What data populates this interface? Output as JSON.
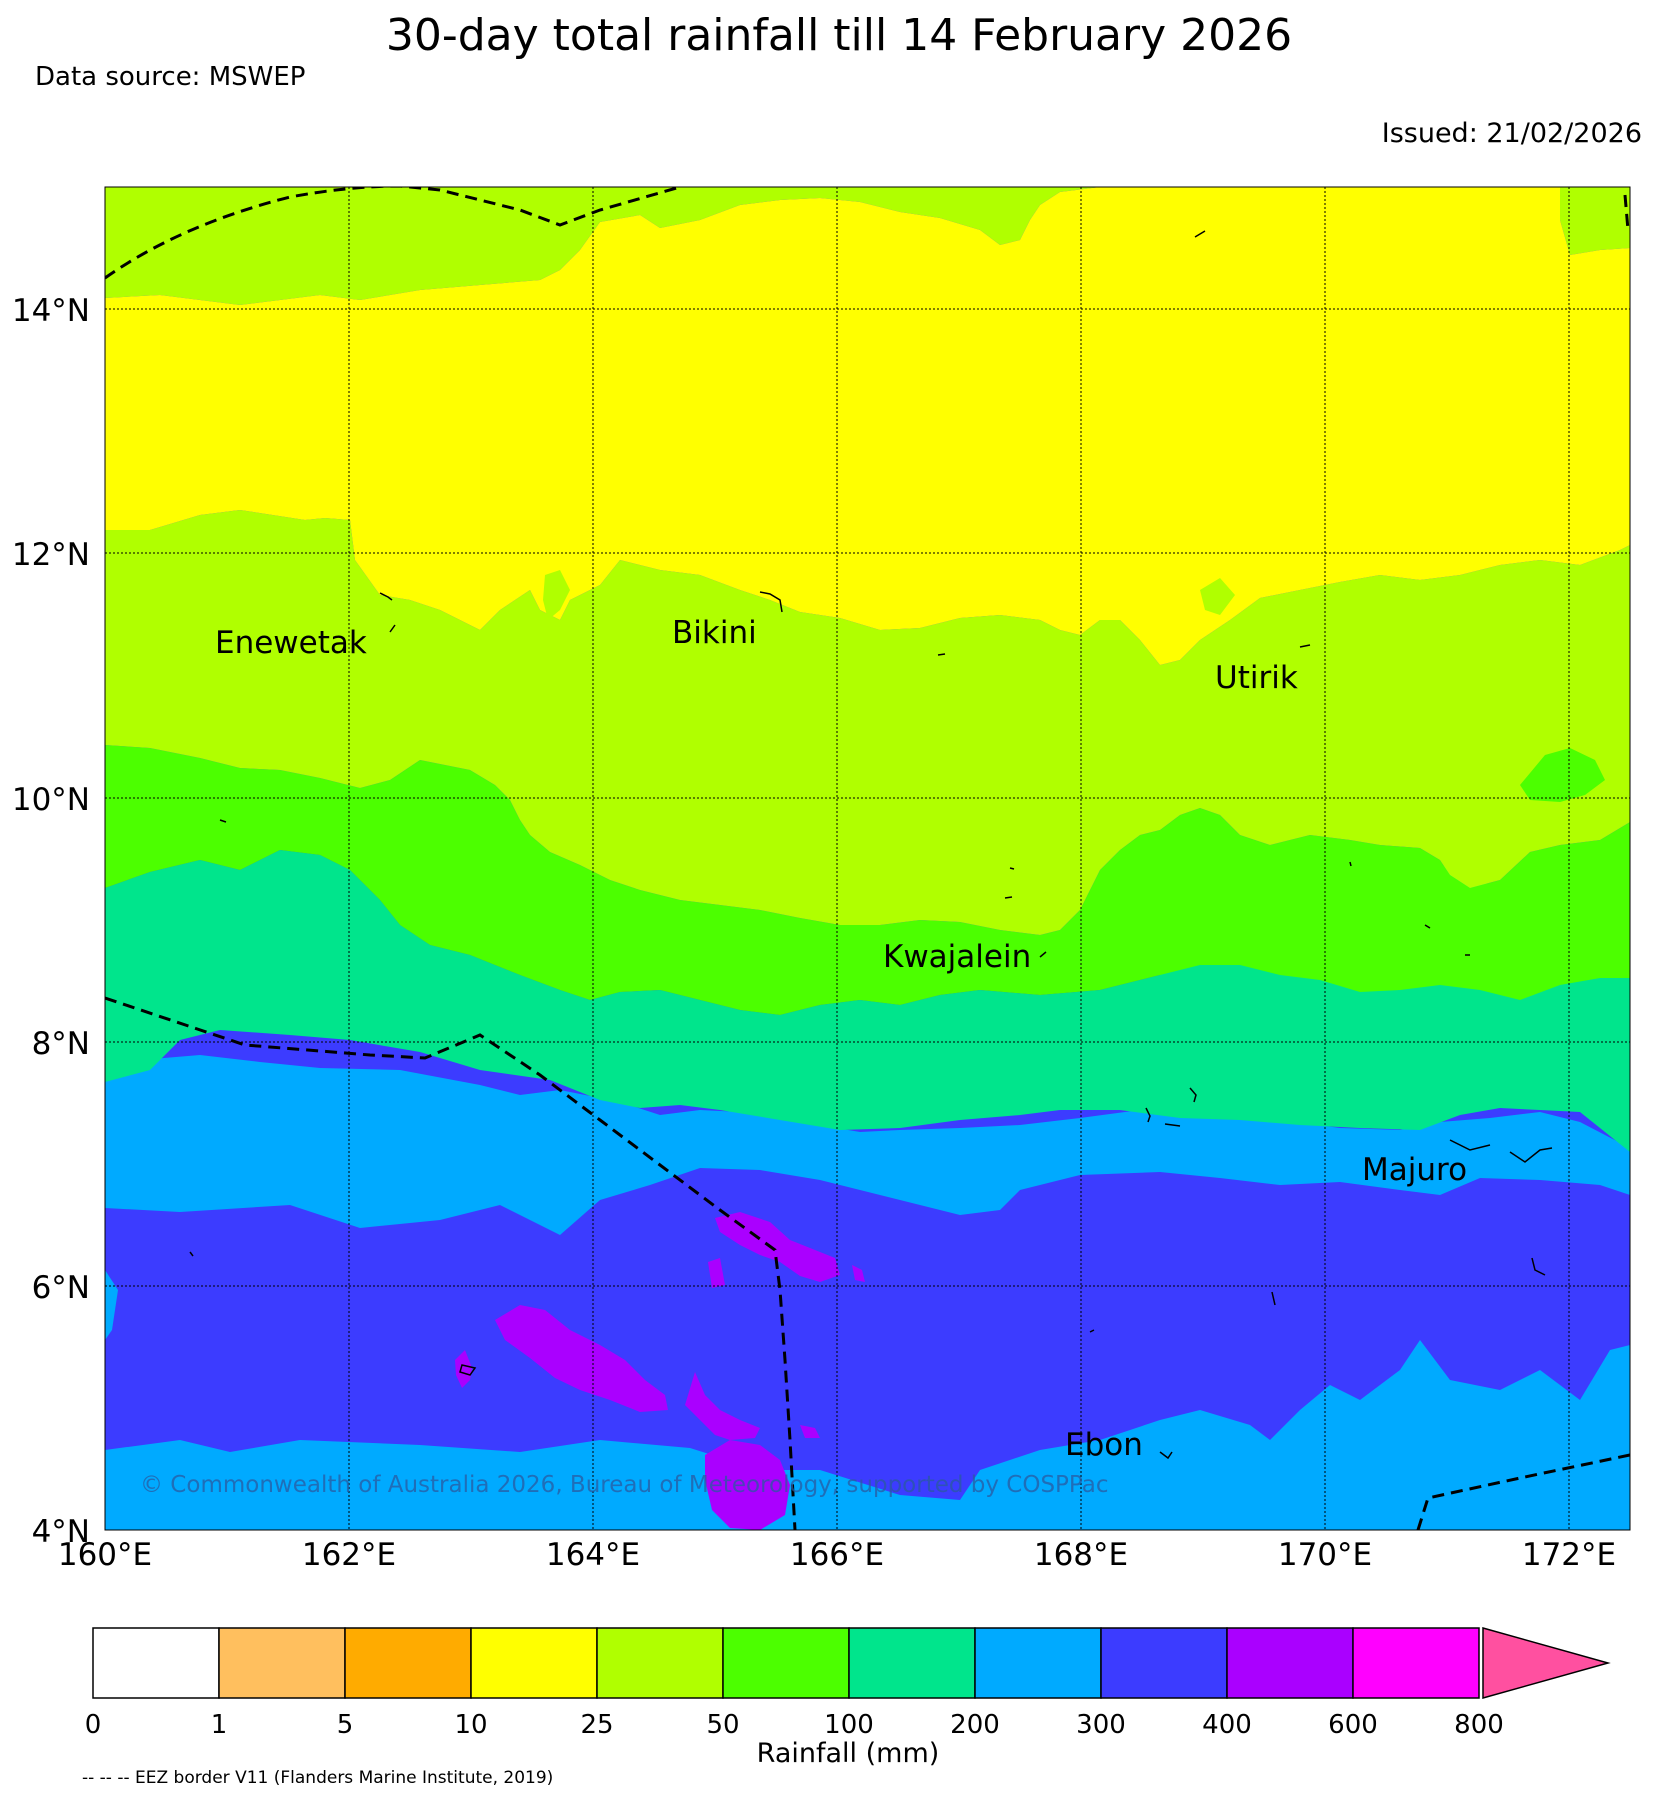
{
  "title": "30-day total rainfall till 14 February 2026",
  "data_source": "Data source: MSWEP",
  "issued": "Issued: 21/02/2026",
  "copyright": "© Commonwealth of Australia 2026, Bureau of Meteorology, supported by COSPPac",
  "map": {
    "lon_range": [
      160,
      172.5
    ],
    "lat_range": [
      4,
      15
    ],
    "lon_ticks": [
      "160°E",
      "162°E",
      "164°E",
      "166°E",
      "168°E",
      "170°E",
      "172°E"
    ],
    "lat_ticks": [
      "4°N",
      "6°N",
      "8°N",
      "10°N",
      "12°N",
      "14°N"
    ],
    "grid": true,
    "places": [
      {
        "name": "Enewetak",
        "lon": 162.35,
        "lat": 11.35
      },
      {
        "name": "Bikini",
        "lon": 165.4,
        "lat": 11.55
      },
      {
        "name": "Utirik",
        "lon": 169.8,
        "lat": 11.2
      },
      {
        "name": "Kwajalein",
        "lon": 167.7,
        "lat": 8.7
      },
      {
        "name": "Majuro",
        "lon": 171.2,
        "lat": 7.1
      },
      {
        "name": "Ebon",
        "lon": 168.7,
        "lat": 4.6
      }
    ]
  },
  "legend": {
    "title": "Rainfall (mm)",
    "ticks": [
      "0",
      "1",
      "5",
      "10",
      "25",
      "50",
      "100",
      "200",
      "300",
      "400",
      "600",
      "800"
    ],
    "colors": [
      "#ffffff",
      "#ffbf5e",
      "#ffab00",
      "#ffff00",
      "#b0ff00",
      "#4cff00",
      "#00e58c",
      "#00aaff",
      "#3c3cff",
      "#aa00ff",
      "#ff00ff",
      "#ff50a0"
    ]
  },
  "eez_note": "-- -- -- EEZ border V11 (Flanders Marine Institute, 2019)"
}
